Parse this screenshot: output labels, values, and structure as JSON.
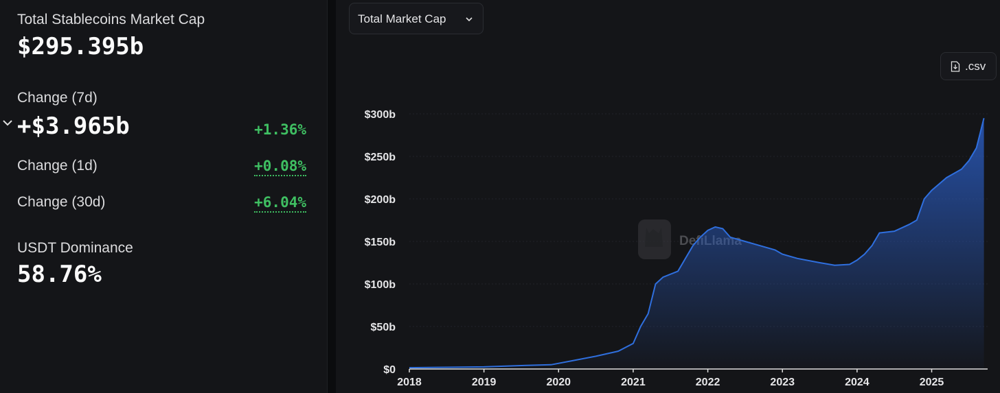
{
  "summary": {
    "total_label": "Total Stablecoins Market Cap",
    "total_value": "$295.395b",
    "change_7d_label": "Change (7d)",
    "change_7d_value": "+$3.965b",
    "change_7d_pct": "+1.36%",
    "change_1d_label": "Change (1d)",
    "change_1d_pct": "+0.08%",
    "change_30d_label": "Change (30d)",
    "change_30d_pct": "+6.04%",
    "dominance_label": "USDT Dominance",
    "dominance_value": "58.76%"
  },
  "controls": {
    "metric_select": "Total Market Cap",
    "csv_button": ".csv"
  },
  "watermark": "DefiLlama",
  "colors": {
    "line": "#2f6fde",
    "positive": "#3fbf62",
    "background": "#141518"
  },
  "chart_data": {
    "type": "area",
    "xlabel": "",
    "ylabel": "",
    "ylim": [
      0,
      300
    ],
    "y_ticks": [
      "$0",
      "$50b",
      "$100b",
      "$150b",
      "$200b",
      "$250b",
      "$300b"
    ],
    "y_tick_values": [
      0,
      50,
      100,
      150,
      200,
      250,
      300
    ],
    "x_ticks": [
      "2018",
      "2019",
      "2020",
      "2021",
      "2022",
      "2023",
      "2024",
      "2025"
    ],
    "x_tick_values": [
      2018,
      2019,
      2020,
      2021,
      2022,
      2023,
      2024,
      2025
    ],
    "grid": true,
    "series": [
      {
        "x": [
          2018.0,
          2018.5,
          2019.0,
          2019.5,
          2019.9,
          2020.2,
          2020.5,
          2020.8,
          2021.0,
          2021.1,
          2021.2,
          2021.3,
          2021.4,
          2021.6,
          2021.7,
          2021.8,
          2021.9,
          2022.0,
          2022.1,
          2022.2,
          2022.3,
          2022.5,
          2022.7,
          2022.9,
          2023.0,
          2023.2,
          2023.5,
          2023.7,
          2023.9,
          2024.0,
          2024.1,
          2024.2,
          2024.3,
          2024.5,
          2024.7,
          2024.8,
          2024.9,
          2025.0,
          2025.2,
          2025.4,
          2025.5,
          2025.6,
          2025.7
        ],
        "y": [
          1.5,
          2,
          2.5,
          4,
          5,
          10,
          15,
          21,
          30,
          50,
          65,
          100,
          108,
          115,
          130,
          145,
          155,
          163,
          167,
          165,
          155,
          150,
          145,
          140,
          135,
          130,
          125,
          122,
          123,
          128,
          135,
          145,
          160,
          162,
          170,
          175,
          200,
          210,
          225,
          235,
          245,
          260,
          295
        ]
      }
    ]
  }
}
